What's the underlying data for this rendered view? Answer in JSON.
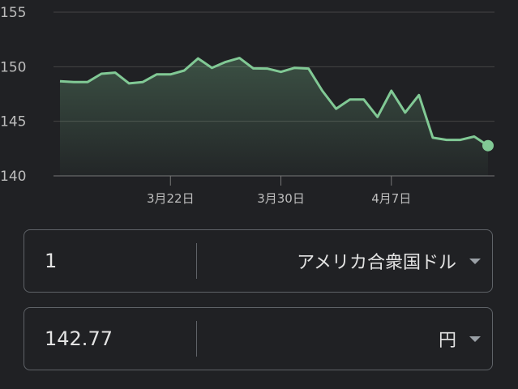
{
  "chart_data": {
    "type": "area",
    "y_ticks": [
      140,
      145,
      150,
      155
    ],
    "ylim": [
      140,
      155
    ],
    "grid": true,
    "x_ticks": [
      {
        "date": "2024-03-22",
        "label": "3月22日"
      },
      {
        "date": "2024-03-30",
        "label": "3月30日"
      },
      {
        "date": "2024-04-07",
        "label": "4月7日"
      }
    ],
    "start_date": "2024-03-14",
    "values": [
      148.67,
      148.6,
      148.6,
      149.36,
      149.46,
      148.47,
      148.6,
      149.3,
      149.3,
      149.65,
      150.76,
      149.9,
      150.44,
      150.8,
      149.85,
      149.83,
      149.53,
      149.9,
      149.83,
      147.8,
      146.15,
      147.0,
      147.0,
      145.4,
      147.8,
      145.8,
      147.4,
      143.5,
      143.3,
      143.3,
      143.6,
      142.77
    ],
    "line_color": "#81c995"
  },
  "converter": {
    "from": {
      "amount": "1",
      "currency": "アメリカ合衆国ドル"
    },
    "to": {
      "amount": "142.77",
      "currency": "円"
    }
  }
}
